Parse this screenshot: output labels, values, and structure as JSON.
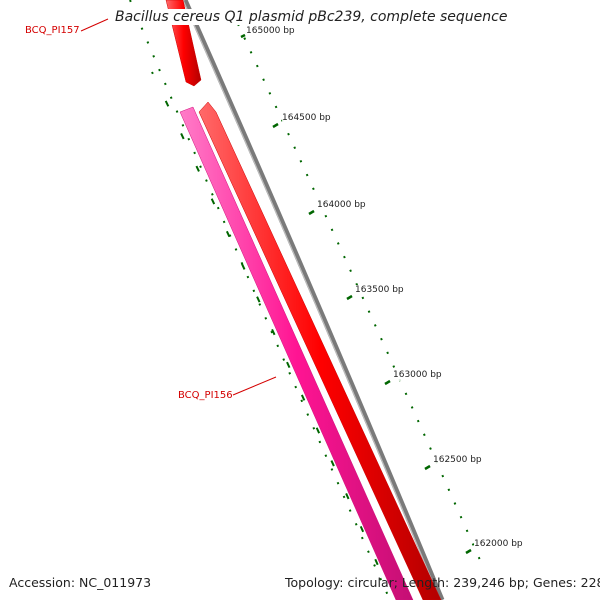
{
  "title": "Bacillus cereus Q1 plasmid pBc239, complete sequence",
  "genes": [
    {
      "label": "BCQ_PI157",
      "color": "#ff0000"
    },
    {
      "label": "BCQ_PI156",
      "color": "#ff0000"
    }
  ],
  "reverse_feature_color": "#ff1493",
  "backbone_color": "#808080",
  "tick_color": "#006600",
  "tick_labels": [
    "165000 bp",
    "164500 bp",
    "164000 bp",
    "163500 bp",
    "163000 bp",
    "162500 bp",
    "162000 bp"
  ],
  "footer": {
    "accession": "Accession: NC_011973",
    "topology": "Topology: circular; Length: 239,246 bp; Genes: 228"
  }
}
